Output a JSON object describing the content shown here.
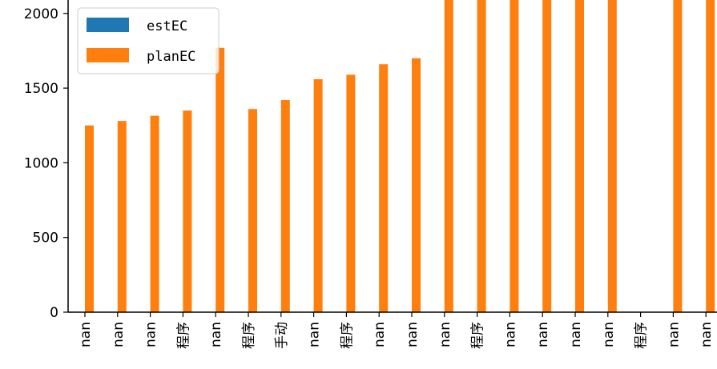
{
  "chart_data": {
    "type": "bar",
    "title": "",
    "xlabel": "",
    "ylabel": "",
    "categories": [
      "nan",
      "nan",
      "nan",
      "程序",
      "nan",
      "程序",
      "手动",
      "nan",
      "程序",
      "nan",
      "nan",
      "nan",
      "程序",
      "nan",
      "nan",
      "nan",
      "nan",
      "程序",
      "nan",
      "nan"
    ],
    "series": [
      {
        "name": "estEC",
        "color": "#1f77b4",
        "values": [
          null,
          null,
          null,
          null,
          null,
          null,
          null,
          null,
          null,
          null,
          null,
          null,
          null,
          null,
          null,
          null,
          null,
          null,
          null,
          null
        ]
      },
      {
        "name": "planEC",
        "color": "#ff7f0e",
        "values": [
          1250,
          1280,
          1315,
          1350,
          1770,
          1360,
          1420,
          1560,
          1590,
          1660,
          1700,
          2100,
          2100,
          2100,
          2100,
          2100,
          2100,
          0,
          2100,
          2100
        ]
      }
    ],
    "yticks": [
      0,
      500,
      1000,
      1500,
      2000
    ],
    "ylim": [
      0,
      2090
    ],
    "grid": false,
    "legend_position": "top-left"
  }
}
